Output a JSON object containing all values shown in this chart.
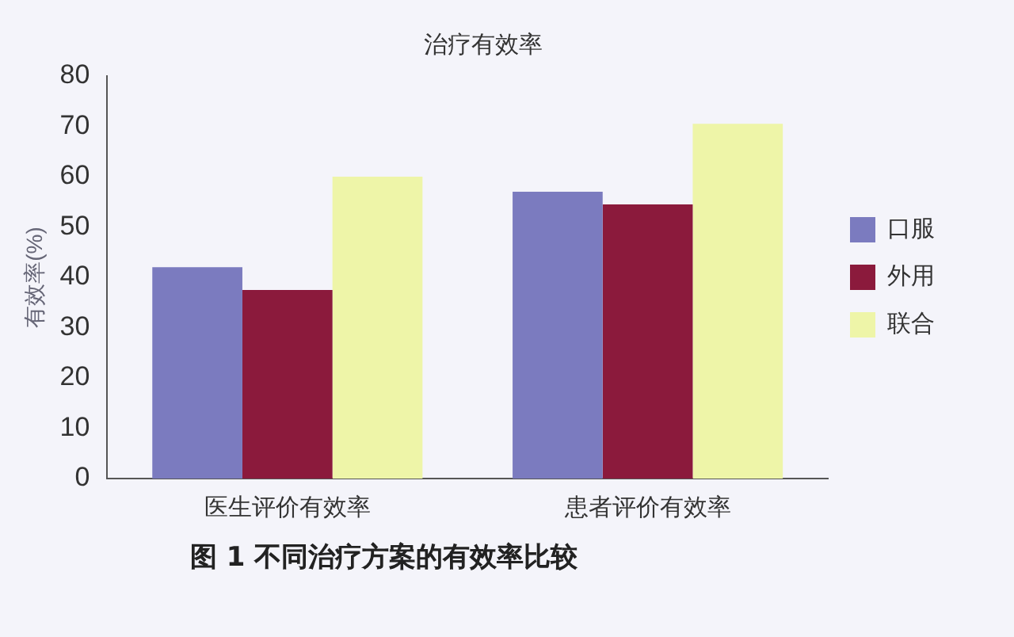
{
  "chart_data": {
    "type": "bar",
    "title": "治疗有效率",
    "ylabel": "有效率(%)",
    "categories": [
      "医生评价有效率",
      "患者评价有效率"
    ],
    "series": [
      {
        "name": "口服",
        "color": "#7b7bbf",
        "values": [
          42,
          57
        ]
      },
      {
        "name": "外用",
        "color": "#8b1a3c",
        "values": [
          37.5,
          54.5
        ]
      },
      {
        "name": "联合",
        "color": "#eef5a8",
        "values": [
          60,
          70.5
        ]
      }
    ],
    "ylim": [
      0,
      80
    ],
    "yticks": [
      0,
      10,
      20,
      30,
      40,
      50,
      60,
      70,
      80
    ],
    "grid": false,
    "legend": "right",
    "annotations": [
      "图 1  不同治疗方案的有效率比较"
    ]
  }
}
